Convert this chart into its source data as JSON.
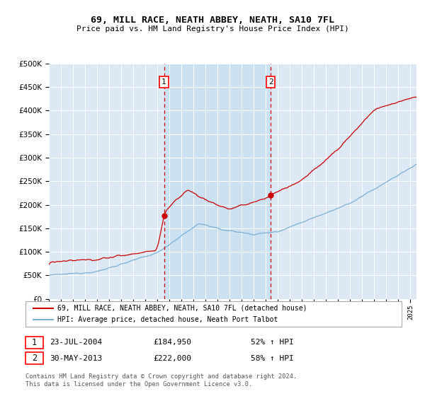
{
  "title": "69, MILL RACE, NEATH ABBEY, NEATH, SA10 7FL",
  "subtitle": "Price paid vs. HM Land Registry's House Price Index (HPI)",
  "hpi_label": "HPI: Average price, detached house, Neath Port Talbot",
  "price_label": "69, MILL RACE, NEATH ABBEY, NEATH, SA10 7FL (detached house)",
  "footnote": "Contains HM Land Registry data © Crown copyright and database right 2024.\nThis data is licensed under the Open Government Licence v3.0.",
  "sale1_date": "23-JUL-2004",
  "sale1_price": "£184,950",
  "sale1_hpi": "52% ↑ HPI",
  "sale1_year": 2004.55,
  "sale2_date": "30-MAY-2013",
  "sale2_price": "£222,000",
  "sale2_hpi": "58% ↑ HPI",
  "sale2_year": 2013.41,
  "sale1_price_val": 184950,
  "sale2_price_val": 222000,
  "ylim": [
    0,
    500000
  ],
  "xlim_start": 1995,
  "xlim_end": 2025.5,
  "background_color": "#dce9f5",
  "shaded_color": "#c8dff0",
  "price_color": "#cc0000",
  "hpi_color": "#7ab0d4",
  "vline_color": "#cc0000",
  "grid_color": "#ffffff",
  "marker_color": "#cc0000"
}
